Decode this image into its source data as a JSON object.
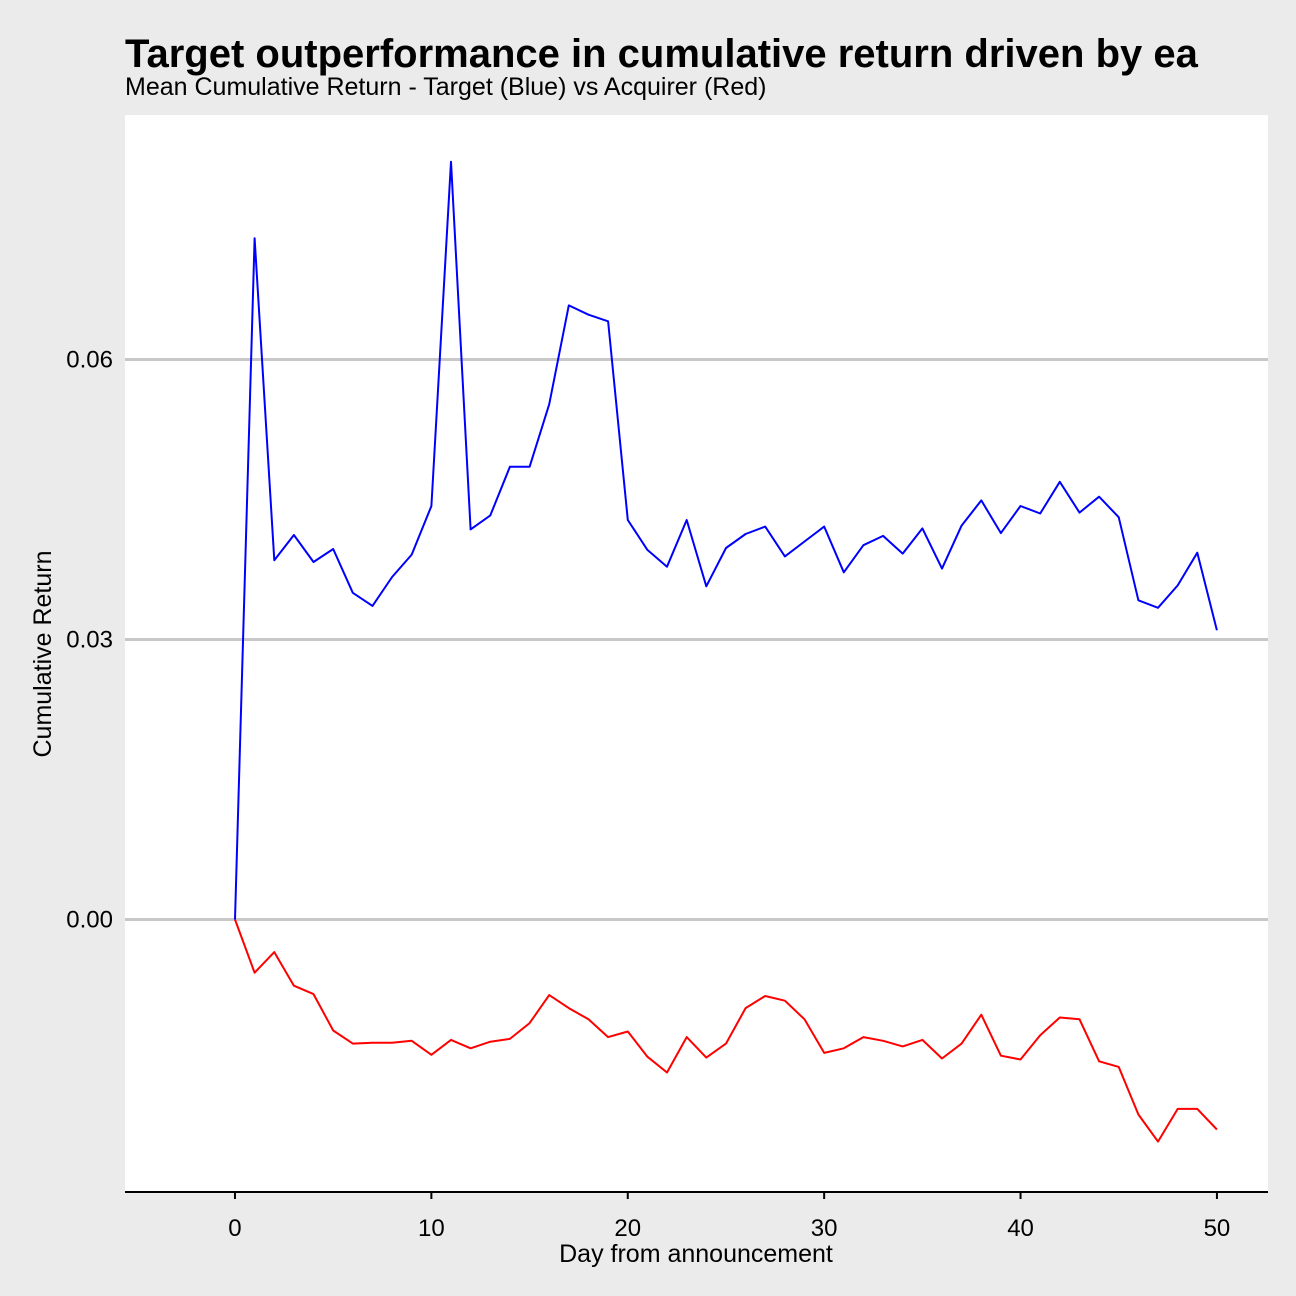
{
  "chart_data": {
    "type": "line",
    "title": "Target outperformance in cumulative return driven by ea",
    "subtitle": "Mean Cumulative Return - Target (Blue) vs Acquirer (Red)",
    "xlabel": "Day from announcement",
    "ylabel": "Cumulative Return",
    "xlim": [
      -5.6,
      52.6
    ],
    "ylim": [
      -0.0292,
      0.0862
    ],
    "x_ticks": [
      0,
      10,
      20,
      30,
      40,
      50
    ],
    "x_tick_labels": [
      "0",
      "10",
      "20",
      "30",
      "40",
      "50"
    ],
    "y_ticks": [
      0.0,
      0.03,
      0.06
    ],
    "y_tick_labels": [
      "0.00",
      "0.03",
      "0.06"
    ],
    "grid": "horizontal major",
    "legend": "none",
    "x": [
      0,
      1,
      2,
      3,
      4,
      5,
      6,
      7,
      8,
      9,
      10,
      11,
      12,
      13,
      14,
      15,
      16,
      17,
      18,
      19,
      20,
      21,
      22,
      23,
      24,
      25,
      26,
      27,
      28,
      29,
      30,
      31,
      32,
      33,
      34,
      35,
      36,
      37,
      38,
      39,
      40,
      41,
      42,
      43,
      44,
      45,
      46,
      47,
      48,
      49,
      50
    ],
    "series": [
      {
        "color": "#0000ff",
        "values": [
          0.0,
          0.073,
          0.0385,
          0.0412,
          0.0383,
          0.0397,
          0.035,
          0.0336,
          0.0367,
          0.0391,
          0.0443,
          0.0812,
          0.0418,
          0.0433,
          0.0485,
          0.0485,
          0.0552,
          0.0658,
          0.0648,
          0.0641,
          0.0428,
          0.0396,
          0.0378,
          0.0428,
          0.0357,
          0.0398,
          0.0413,
          0.0421,
          0.0389,
          0.0405,
          0.0421,
          0.0372,
          0.0401,
          0.0411,
          0.0392,
          0.0419,
          0.0376,
          0.0422,
          0.0449,
          0.0414,
          0.0443,
          0.0435,
          0.0469,
          0.0436,
          0.0453,
          0.0431,
          0.0342,
          0.0334,
          0.0358,
          0.0393,
          0.031
        ]
      },
      {
        "color": "#ff0000",
        "values": [
          0.0,
          -0.0057,
          -0.0035,
          -0.0071,
          -0.008,
          -0.0119,
          -0.0133,
          -0.0132,
          -0.0132,
          -0.013,
          -0.0145,
          -0.0129,
          -0.0138,
          -0.0131,
          -0.0128,
          -0.0111,
          -0.0081,
          -0.0095,
          -0.0107,
          -0.0126,
          -0.012,
          -0.0147,
          -0.0164,
          -0.0126,
          -0.0148,
          -0.0133,
          -0.0095,
          -0.0082,
          -0.0087,
          -0.0107,
          -0.0143,
          -0.0138,
          -0.0126,
          -0.013,
          -0.0136,
          -0.0129,
          -0.0149,
          -0.0133,
          -0.0102,
          -0.0146,
          -0.015,
          -0.0124,
          -0.0105,
          -0.0107,
          -0.0152,
          -0.0158,
          -0.0209,
          -0.0238,
          -0.0203,
          -0.0203,
          -0.0225
        ]
      }
    ]
  }
}
